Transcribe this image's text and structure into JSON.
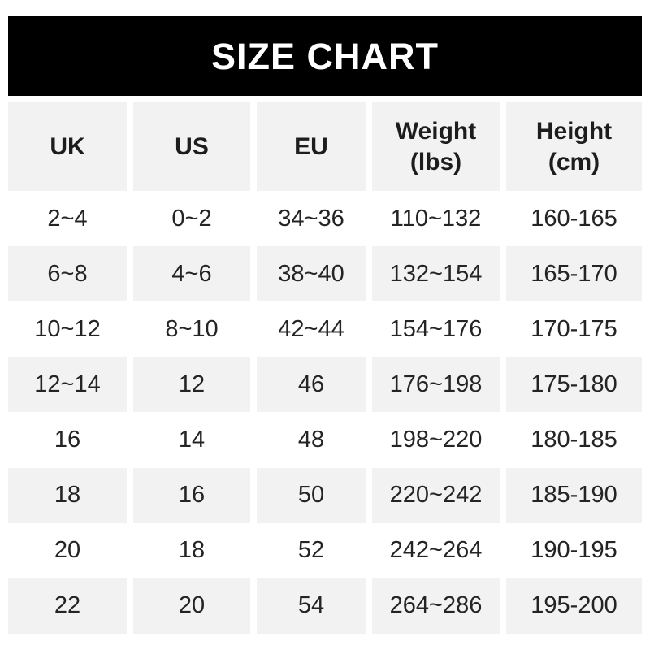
{
  "banner": {
    "title": "SIZE CHART"
  },
  "chart_data": {
    "type": "table",
    "title": "SIZE CHART",
    "columns": [
      {
        "label": "UK",
        "sub": ""
      },
      {
        "label": "US",
        "sub": ""
      },
      {
        "label": "EU",
        "sub": ""
      },
      {
        "label": "Weight",
        "sub": "(lbs)"
      },
      {
        "label": "Height",
        "sub": "(cm)"
      }
    ],
    "rows": [
      [
        "2~4",
        "0~2",
        "34~36",
        "110~132",
        "160-165"
      ],
      [
        "6~8",
        "4~6",
        "38~40",
        "132~154",
        "165-170"
      ],
      [
        "10~12",
        "8~10",
        "42~44",
        "154~176",
        "170-175"
      ],
      [
        "12~14",
        "12",
        "46",
        "176~198",
        "175-180"
      ],
      [
        "16",
        "14",
        "48",
        "198~220",
        "180-185"
      ],
      [
        "18",
        "16",
        "50",
        "220~242",
        "185-190"
      ],
      [
        "20",
        "18",
        "52",
        "242~264",
        "190-195"
      ],
      [
        "22",
        "20",
        "54",
        "264~286",
        "195-200"
      ]
    ]
  },
  "colors": {
    "banner_bg": "#000000",
    "banner_text": "#ffffff",
    "row_alt_bg": "#f2f2f2",
    "header_text": "#1d1d1d",
    "cell_text": "#242424",
    "page_bg": "#ffffff"
  }
}
